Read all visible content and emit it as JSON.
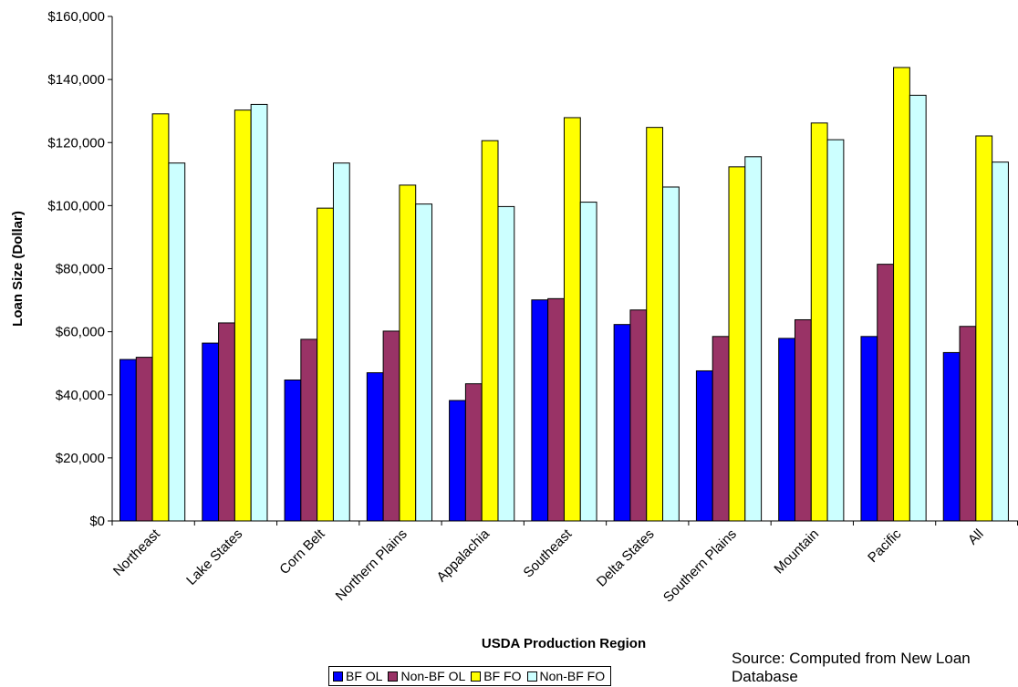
{
  "chart_data": {
    "type": "bar",
    "title": "",
    "xlabel": "USDA Production Region",
    "ylabel": "Loan Size (Dollar)",
    "ylim": [
      0,
      160000
    ],
    "yticks": [
      "$0",
      "$20,000",
      "$40,000",
      "$60,000",
      "$80,000",
      "$100,000",
      "$120,000",
      "$140,000",
      "$160,000"
    ],
    "grid": false,
    "legend_position": "bottom",
    "categories": [
      "Northeast",
      "Lake States",
      "Corn Belt",
      "Northern Plains",
      "Appalachia",
      "Southeast",
      "Delta States",
      "Southern Plains",
      "Mountain",
      "Pacific",
      "All"
    ],
    "series": [
      {
        "name": "BF OL",
        "color": "#0000FF",
        "values": [
          51200,
          56400,
          44700,
          47000,
          38200,
          70100,
          62300,
          47600,
          57900,
          58500,
          53400
        ]
      },
      {
        "name": "Non-BF OL",
        "color": "#993366",
        "values": [
          51900,
          62800,
          57600,
          60200,
          43500,
          70500,
          66900,
          58500,
          63800,
          81400,
          61700
        ]
      },
      {
        "name": "BF FO",
        "color": "#FFFF00",
        "values": [
          129100,
          130300,
          99200,
          106500,
          120600,
          127900,
          124800,
          112300,
          126200,
          143800,
          122100
        ]
      },
      {
        "name": "Non-BF FO",
        "color": "#CCFFFF",
        "values": [
          113500,
          132100,
          113500,
          100500,
          99700,
          101100,
          105900,
          115500,
          120900,
          135000,
          113800
        ]
      }
    ]
  },
  "source_note": "Source: Computed from New Loan Database"
}
